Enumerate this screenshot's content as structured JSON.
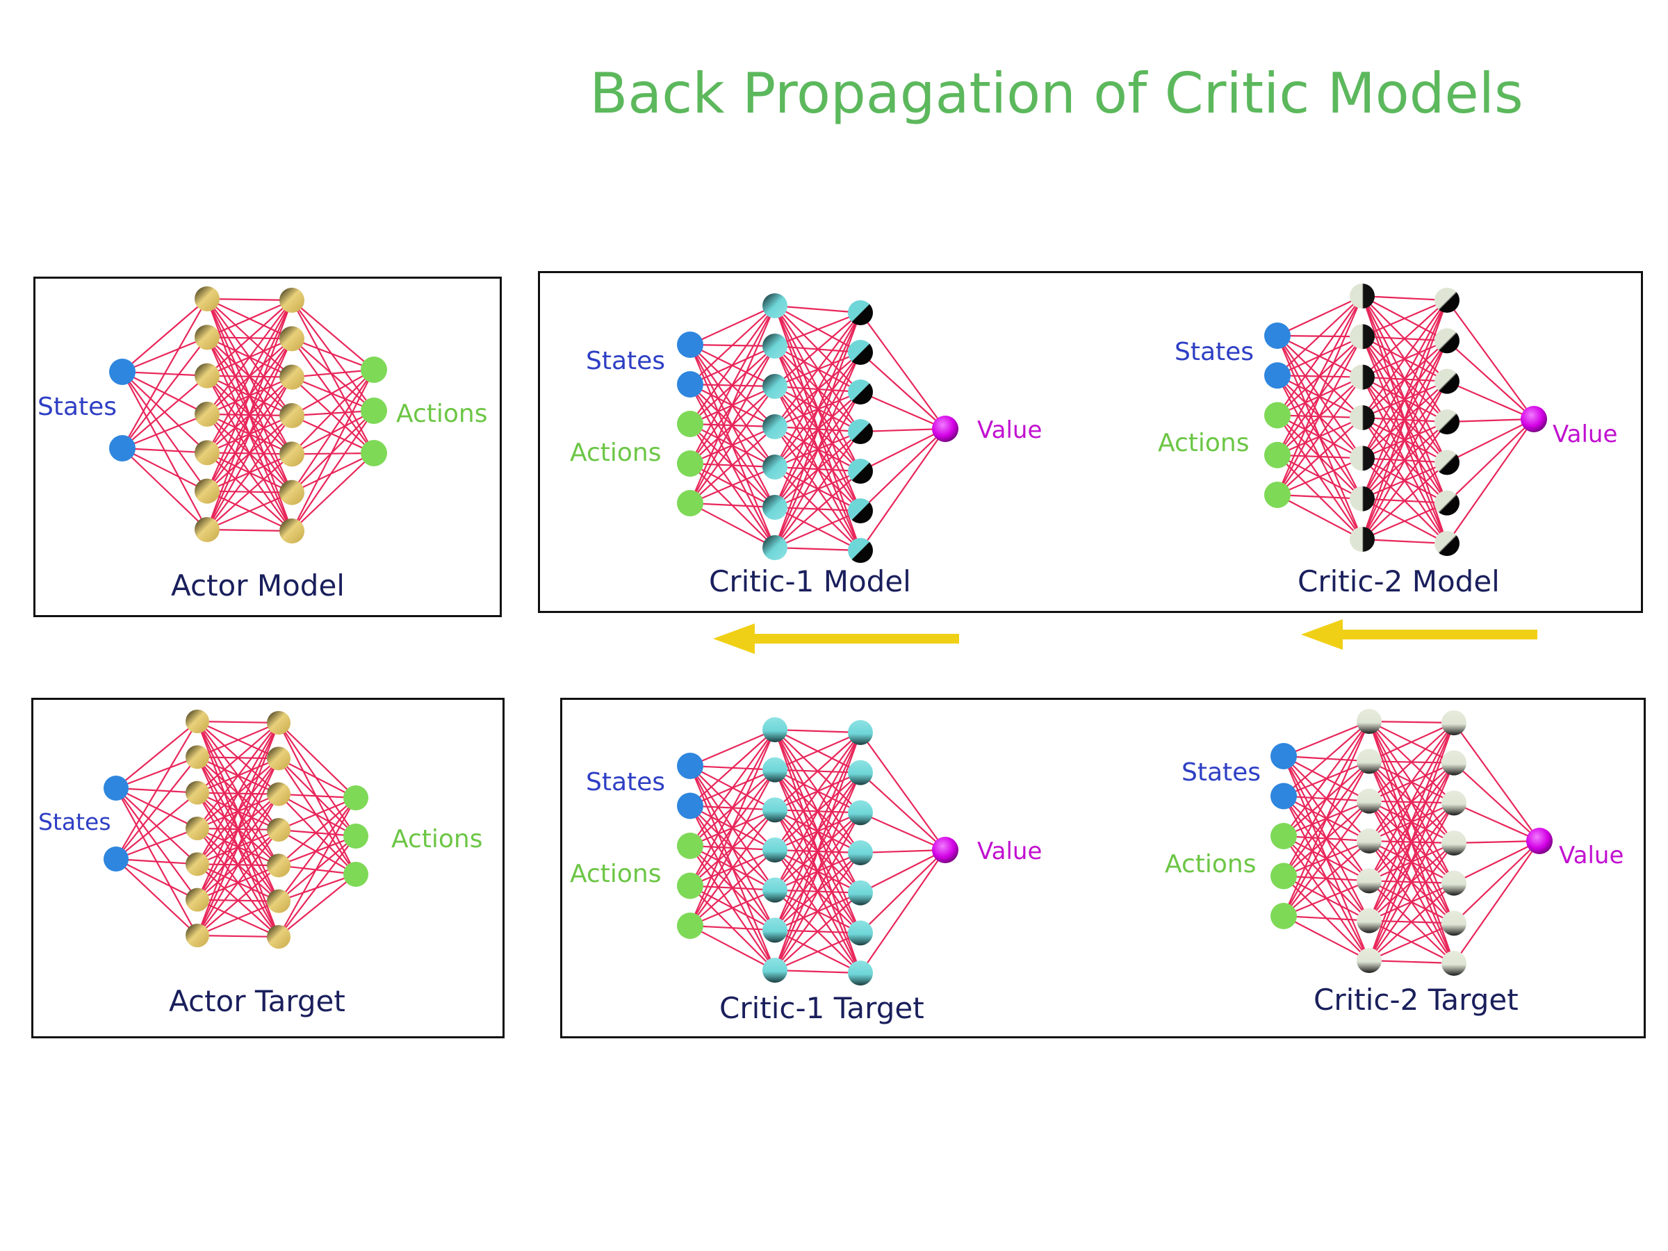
{
  "title": "Back Propagation of Critic Models",
  "networks": {
    "actor_model": {
      "caption": "Actor Model",
      "input_label": "States",
      "output_label": "Actions"
    },
    "actor_target": {
      "caption": "Actor Target",
      "input_label": "States",
      "output_label": "Actions"
    },
    "critic1_model": {
      "caption": "Critic-1  Model",
      "states_label": "States",
      "actions_label": "Actions",
      "output_label": "Value"
    },
    "critic2_model": {
      "caption": "Critic-2  Model",
      "states_label": "States",
      "actions_label": "Actions",
      "output_label": "Value"
    },
    "critic1_target": {
      "caption": "Critic-1  Target",
      "states_label": "States",
      "actions_label": "Actions",
      "output_label": "Value"
    },
    "critic2_target": {
      "caption": "Critic-2  Target",
      "states_label": "States",
      "actions_label": "Actions",
      "output_label": "Value"
    }
  },
  "arrows": [
    {
      "direction": "left",
      "meaning": "",
      "color": "#f0d016"
    },
    {
      "direction": "left",
      "meaning": "",
      "color": "#f0d016"
    }
  ],
  "colors": {
    "title": "#5cb85c",
    "states_node": "#2e86de",
    "actions_node": "#7ed957",
    "value_node": "#d400e6",
    "connection": "#e8265a",
    "actor_hidden": "#e0c46a",
    "critic1_hidden": "#6fd6d8",
    "critic2_hidden": "#dfe5d4"
  }
}
